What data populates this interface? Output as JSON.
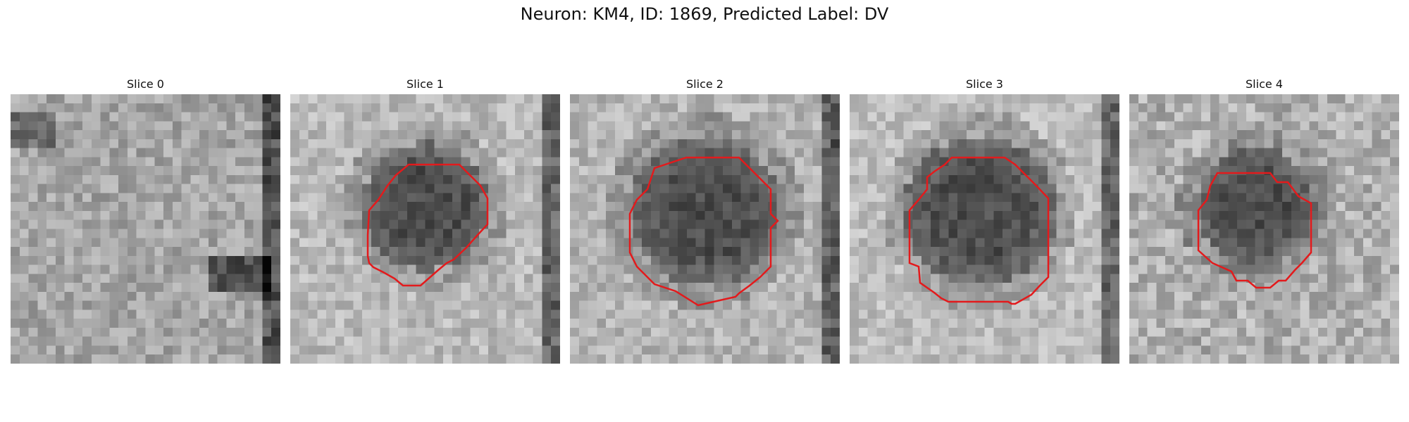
{
  "figure": {
    "title": "Neuron: KM4, ID: 1869, Predicted Label: DV",
    "contour_color": "#e31a1c"
  },
  "slices": [
    {
      "title": "Slice 0",
      "has_contour": false
    },
    {
      "title": "Slice 1",
      "has_contour": true
    },
    {
      "title": "Slice 2",
      "has_contour": true
    },
    {
      "title": "Slice 3",
      "has_contour": true
    },
    {
      "title": "Slice 4",
      "has_contour": true
    }
  ]
}
